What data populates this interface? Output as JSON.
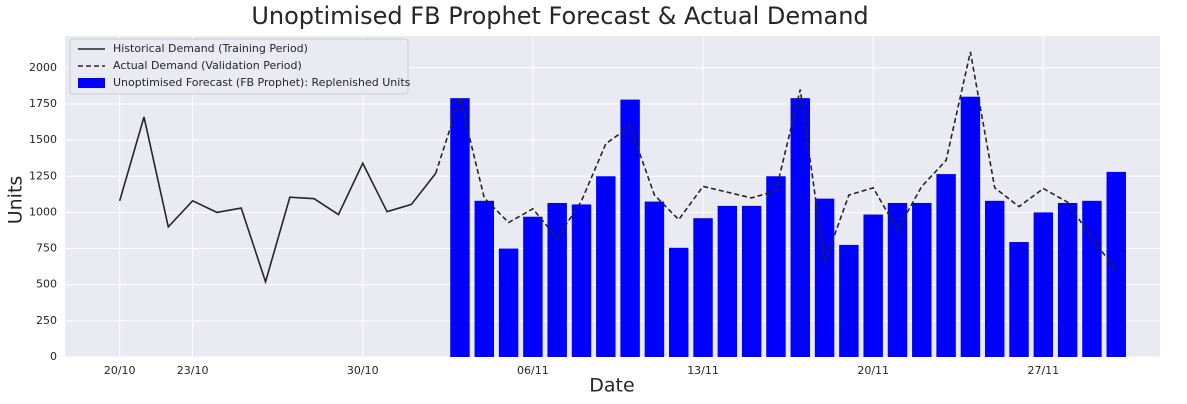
{
  "chart_data": {
    "type": "bar-line",
    "title": "Unoptimised FB Prophet Forecast & Actual Demand",
    "x_label": "Date",
    "y_label": "Units",
    "categories": [
      "20/10",
      null,
      null,
      "23/10",
      null,
      null,
      null,
      null,
      null,
      null,
      "30/10",
      null,
      null,
      null,
      null,
      null,
      null,
      "06/11",
      null,
      null,
      null,
      null,
      null,
      null,
      "13/11",
      null,
      null,
      null,
      null,
      null,
      null,
      "20/11",
      null,
      null,
      null,
      null,
      null,
      null,
      "27/11",
      null,
      null,
      null
    ],
    "series": [
      {
        "name": "Historical Demand (Training Period)",
        "kind": "line",
        "style": "solid",
        "color": "#262626",
        "values": [
          1080,
          1660,
          900,
          1080,
          1000,
          1030,
          520,
          1105,
          1095,
          985,
          1340,
          1005,
          1055,
          1270,
          null,
          null,
          null,
          null,
          null,
          null,
          null,
          null,
          null,
          null,
          null,
          null,
          null,
          null,
          null,
          null,
          null,
          null,
          null,
          null,
          null,
          null,
          null,
          null,
          null,
          null,
          null,
          null
        ]
      },
      {
        "name": "Actual Demand (Validation Period)",
        "kind": "line",
        "style": "dashed",
        "color": "#262626",
        "values": [
          null,
          null,
          null,
          null,
          null,
          null,
          null,
          null,
          null,
          null,
          null,
          null,
          null,
          1270,
          1790,
          1100,
          930,
          1025,
          820,
          1080,
          1475,
          1595,
          1120,
          950,
          1180,
          1140,
          1100,
          1150,
          1850,
          650,
          1120,
          1170,
          880,
          1180,
          1360,
          2110,
          1170,
          1040,
          1165,
          1070,
          820,
          600
        ]
      },
      {
        "name": "Unoptimised Forecast (FB Prophet): Replenished Units",
        "kind": "bar",
        "color": "#0000ff",
        "values": [
          null,
          null,
          null,
          null,
          null,
          null,
          null,
          null,
          null,
          null,
          null,
          null,
          null,
          null,
          1790,
          1080,
          750,
          970,
          1065,
          1055,
          1250,
          1780,
          1075,
          755,
          960,
          1045,
          1045,
          1250,
          1790,
          1095,
          775,
          985,
          1065,
          1065,
          1265,
          1800,
          1080,
          795,
          1000,
          1065,
          1080,
          1280
        ]
      }
    ],
    "ylim": [
      0,
      2220
    ],
    "yticks": [
      0,
      250,
      500,
      750,
      1000,
      1250,
      1500,
      1750,
      2000
    ],
    "grid": true,
    "legend": "upper-left"
  }
}
